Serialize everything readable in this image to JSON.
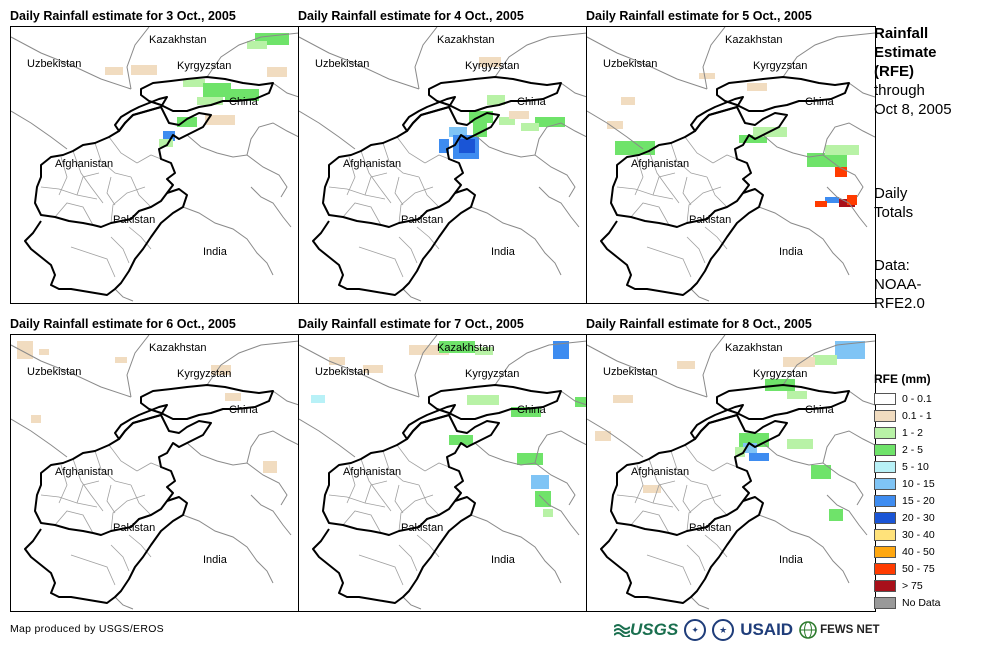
{
  "panels": [
    {
      "title": "Daily Rainfall estimate for 3 Oct., 2005"
    },
    {
      "title": "Daily Rainfall estimate for 4 Oct., 2005"
    },
    {
      "title": "Daily Rainfall estimate for 5 Oct., 2005"
    },
    {
      "title": "Daily Rainfall estimate for 6 Oct., 2005"
    },
    {
      "title": "Daily Rainfall estimate for 7 Oct., 2005"
    },
    {
      "title": "Daily Rainfall estimate for 8 Oct., 2005"
    }
  ],
  "map_labels": {
    "kazakhstan": "Kazakhstan",
    "uzbekistan": "Uzbekistan",
    "kyrgyzstan": "Kyrgyzstan",
    "china": "China",
    "afghanistan": "Afghanistan",
    "pakistan": "Pakistan",
    "india": "India"
  },
  "side": {
    "title_bold_1": "Rainfall",
    "title_bold_2": "Estimate",
    "title_bold_3": "(RFE)",
    "title_line_4": "through",
    "title_line_5": "Oct 8, 2005",
    "daily_1": "Daily",
    "daily_2": "Totals",
    "data_1": "Data:",
    "data_2": "NOAA-",
    "data_3": "RFE2.0"
  },
  "legend": {
    "title": "RFE (mm)",
    "items": [
      {
        "label": "0 - 0.1",
        "color": "#ffffff"
      },
      {
        "label": "0.1 - 1",
        "color": "#f1dcc0"
      },
      {
        "label": "1 - 2",
        "color": "#b8f2a6"
      },
      {
        "label": "2 - 5",
        "color": "#6fe36a"
      },
      {
        "label": "5 - 10",
        "color": "#b8f1f7"
      },
      {
        "label": "10 - 15",
        "color": "#7fc4f5"
      },
      {
        "label": "15 - 20",
        "color": "#3e8cf0"
      },
      {
        "label": "20 - 30",
        "color": "#1a55d6"
      },
      {
        "label": "30 - 40",
        "color": "#ffe27a"
      },
      {
        "label": "40 - 50",
        "color": "#ffa70f"
      },
      {
        "label": "50 - 75",
        "color": "#ff3b00"
      },
      {
        "label": "> 75",
        "color": "#a8101a"
      },
      {
        "label": "No Data",
        "color": "#999999"
      }
    ]
  },
  "credit": "Map produced by USGS/EROS",
  "logos": {
    "usgs": "USGS",
    "usaid": "USAID",
    "fews": "FEWS NET"
  }
}
